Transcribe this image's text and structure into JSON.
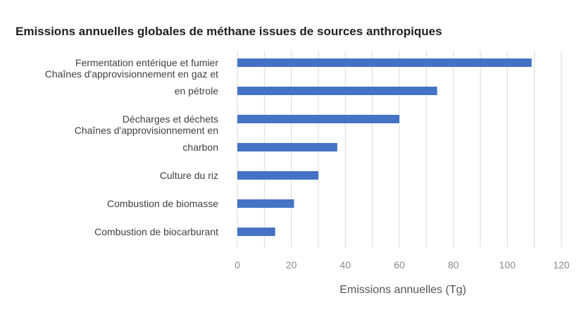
{
  "chart_data": {
    "type": "bar",
    "orientation": "horizontal",
    "title": "Emissions annuelles globales de méthane issues de sources anthropiques",
    "xlabel": "Emissions annuelles (Tg)",
    "ylabel": "",
    "categories": [
      [
        "Fermentation entérique et fumier"
      ],
      [
        "Chaînes d'approvisionnement en gaz et",
        "en pétrole"
      ],
      [
        "Décharges et déchets"
      ],
      [
        "Chaînes d'approvisionnement en",
        "charbon"
      ],
      [
        "Culture du riz"
      ],
      [
        "Combustion de biomasse"
      ],
      [
        "Combustion de biocarburant"
      ]
    ],
    "values": [
      109,
      74,
      60,
      37,
      30,
      21,
      14
    ],
    "xlim": [
      0,
      120
    ],
    "xticks": [
      0,
      20,
      40,
      60,
      80,
      100,
      120
    ],
    "grid": true,
    "colors": {
      "bar": "#4472c4",
      "grid": "#d9d9d9"
    }
  }
}
